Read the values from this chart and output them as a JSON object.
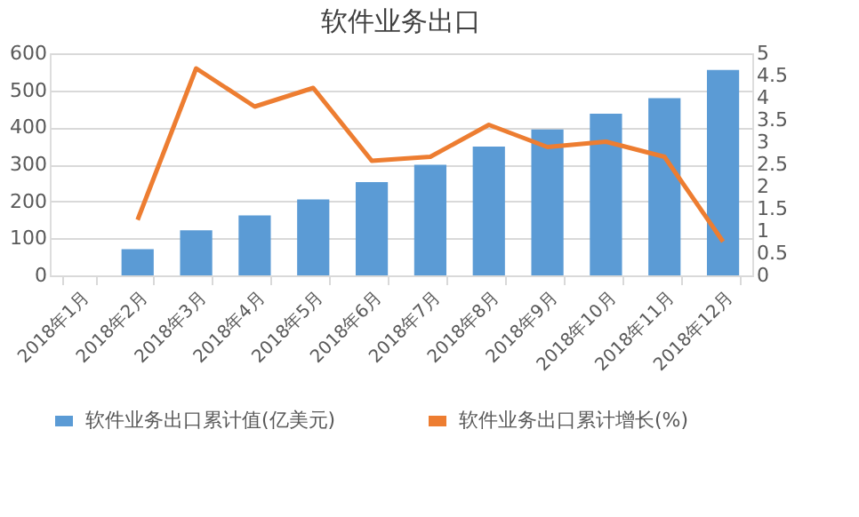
{
  "chart_data": {
    "type": "bar",
    "title": "软件业务出口",
    "categories": [
      "2018年1月",
      "2018年2月",
      "2018年3月",
      "2018年4月",
      "2018年5月",
      "2018年6月",
      "2018年7月",
      "2018年8月",
      "2018年9月",
      "2018年10月",
      "2018年11月",
      "2018年12月"
    ],
    "series": [
      {
        "name": "软件业务出口累计值(亿美元)",
        "color": "#5b9bd5",
        "values": [
          null,
          71,
          122,
          162,
          205,
          252,
          299,
          348,
          394,
          437,
          479,
          555
        ]
      },
      {
        "name": "软件业务出口累计增长(%)",
        "type": "line",
        "axis": "y2",
        "color": "#ed7d31",
        "values": [
          null,
          1.25,
          4.66,
          3.8,
          4.22,
          2.58,
          2.67,
          3.39,
          2.89,
          3.01,
          2.67,
          0.76
        ]
      }
    ],
    "ylim": [
      0,
      600
    ],
    "yticks": [
      0,
      100,
      200,
      300,
      400,
      500,
      600
    ],
    "y2lim": [
      0,
      5
    ],
    "y2ticks": [
      0,
      0.5,
      1,
      1.5,
      2,
      2.5,
      3,
      3.5,
      4,
      4.5,
      5
    ],
    "grid": "y",
    "legend": "bottom",
    "marker": "none",
    "line_style": "solid"
  }
}
